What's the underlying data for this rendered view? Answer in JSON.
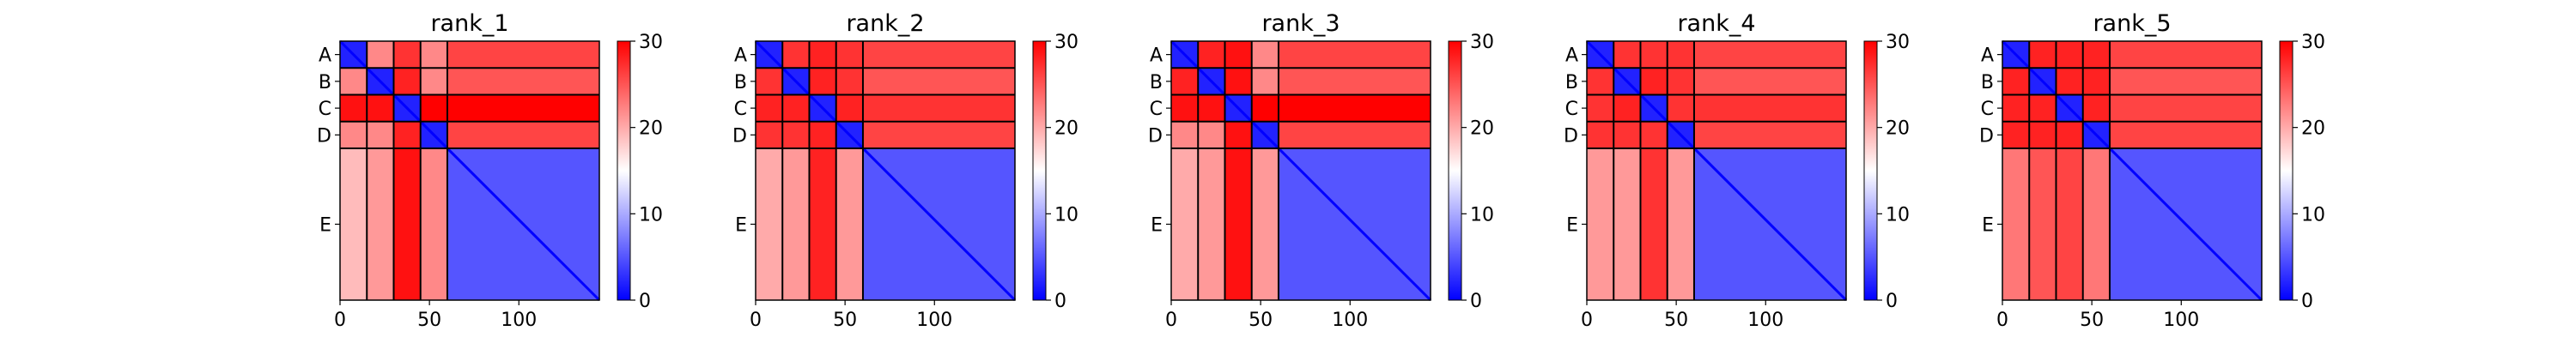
{
  "chart_data": {
    "type": "heatmap",
    "colorbar": {
      "min": 0,
      "max": 30,
      "ticks": [
        0,
        10,
        20,
        30
      ],
      "colormap": "bwr",
      "colors": {
        "low": "#0000ff",
        "mid": "#ffffff",
        "high": "#ff0000"
      }
    },
    "x_ticks": [
      0,
      50,
      100
    ],
    "x_range": [
      0,
      145
    ],
    "chains": [
      {
        "label": "A",
        "start": 0,
        "end": 15
      },
      {
        "label": "B",
        "start": 15,
        "end": 30
      },
      {
        "label": "C",
        "start": 30,
        "end": 45
      },
      {
        "label": "D",
        "start": 45,
        "end": 60
      },
      {
        "label": "E",
        "start": 60,
        "end": 145
      }
    ],
    "panels": [
      {
        "title": "rank_1",
        "block_values": [
          [
            2,
            22,
            27,
            22,
            26
          ],
          [
            22,
            2,
            28,
            22,
            25
          ],
          [
            29,
            29,
            2,
            30,
            30
          ],
          [
            22,
            22,
            28,
            2,
            26
          ],
          [
            19,
            21,
            29,
            22,
            5
          ]
        ]
      },
      {
        "title": "rank_2",
        "block_values": [
          [
            2,
            27,
            28,
            27,
            26
          ],
          [
            27,
            2,
            28,
            27,
            25
          ],
          [
            28,
            28,
            2,
            28,
            27
          ],
          [
            27,
            27,
            28,
            2,
            26
          ],
          [
            20,
            21,
            28,
            21,
            5
          ]
        ]
      },
      {
        "title": "rank_3",
        "block_values": [
          [
            2,
            28,
            29,
            22,
            26
          ],
          [
            28,
            2,
            29,
            22,
            25
          ],
          [
            29,
            29,
            2,
            30,
            30
          ],
          [
            22,
            22,
            29,
            2,
            26
          ],
          [
            20,
            21,
            29,
            21,
            5
          ]
        ]
      },
      {
        "title": "rank_4",
        "block_values": [
          [
            2,
            27,
            27,
            27,
            26
          ],
          [
            27,
            2,
            28,
            27,
            25
          ],
          [
            27,
            28,
            2,
            27,
            27
          ],
          [
            27,
            27,
            27,
            2,
            26
          ],
          [
            21,
            21,
            27,
            21,
            5
          ]
        ]
      },
      {
        "title": "rank_5",
        "block_values": [
          [
            2,
            28,
            28,
            28,
            26
          ],
          [
            28,
            2,
            28,
            28,
            25
          ],
          [
            28,
            28,
            2,
            28,
            26
          ],
          [
            28,
            28,
            28,
            2,
            26
          ],
          [
            23,
            25,
            26,
            23,
            5
          ]
        ]
      }
    ]
  }
}
